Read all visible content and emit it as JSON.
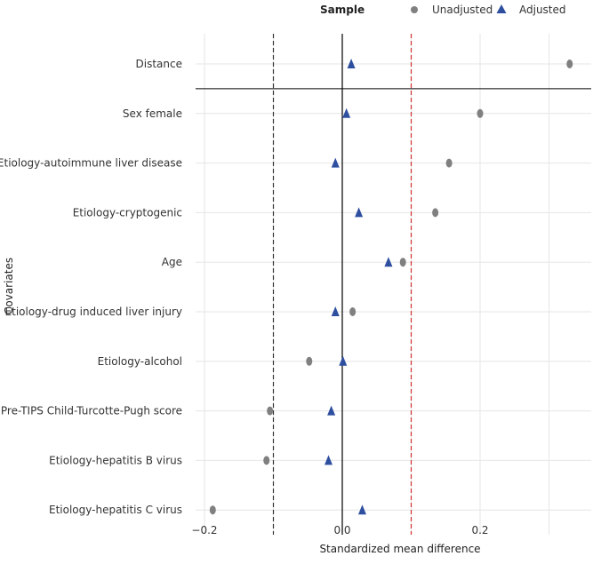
{
  "chart_data": {
    "type": "scatter",
    "xlabel": "Standardized mean difference",
    "ylabel": "Covariates",
    "xlim": [
      -0.22,
      0.36
    ],
    "x_ticks": [
      -0.2,
      0.0,
      0.2
    ],
    "x_tick_labels": [
      "−0.2",
      "0.0",
      "0.2"
    ],
    "reference_lines": [
      {
        "x": -0.1,
        "style": "dashed",
        "color": "#333333"
      },
      {
        "x": 0.0,
        "style": "solid",
        "color": "#000000"
      },
      {
        "x": 0.1,
        "style": "dashed",
        "color": "#d03030"
      }
    ],
    "separator_after": "Distance",
    "grid": true,
    "legend": {
      "title": "Sample",
      "placement": "top",
      "entries": [
        {
          "name": "Unadjusted",
          "marker": "circle",
          "color": "#808080"
        },
        {
          "name": "Adjusted",
          "marker": "triangle",
          "color": "#2e4fa0"
        }
      ]
    },
    "categories": [
      "Distance",
      "Sex female",
      "Etiology-autoimmune liver disease",
      "Etiology-cryptogenic",
      "Age",
      "Etiology-drug induced liver injury",
      "Etiology-alcohol",
      "Pre-TIPS Child-Turcotte-Pugh score",
      "Etiology-hepatitis B virus",
      "Etiology-hepatitis C virus"
    ],
    "series": [
      {
        "name": "Unadjusted",
        "marker": "circle",
        "color": "#808080",
        "values": [
          0.33,
          0.2,
          0.155,
          0.135,
          0.088,
          0.015,
          -0.048,
          -0.105,
          -0.11,
          -0.188
        ]
      },
      {
        "name": "Adjusted",
        "marker": "triangle",
        "color": "#2e4fa0",
        "values": [
          0.013,
          0.006,
          -0.01,
          0.024,
          0.067,
          -0.01,
          0.001,
          -0.016,
          -0.02,
          0.029
        ]
      }
    ]
  }
}
